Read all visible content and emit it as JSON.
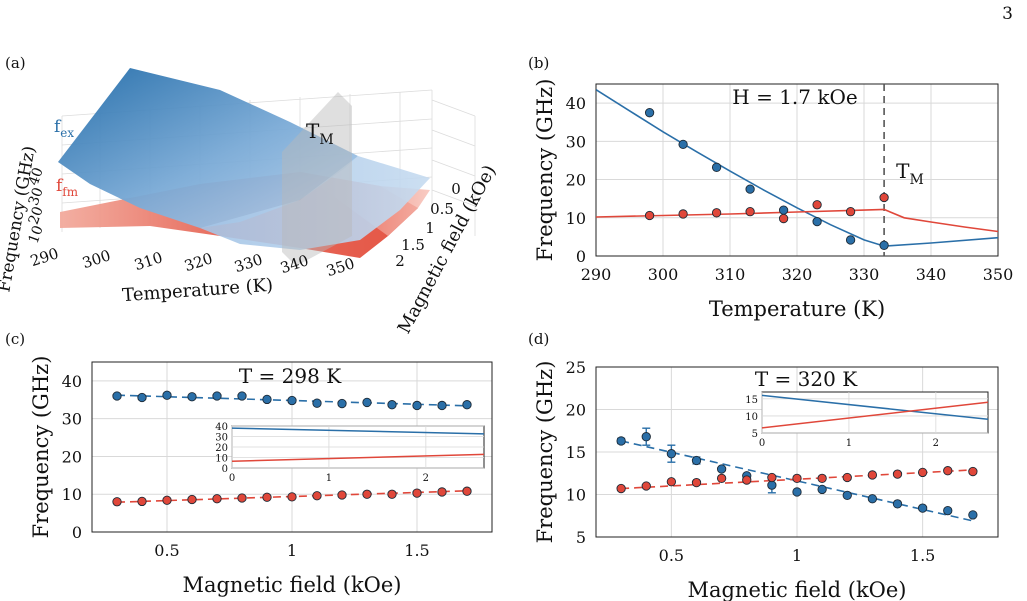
{
  "page_number": "3",
  "colors": {
    "blue": "#2a6fa8",
    "red": "#e0473a",
    "grid": "#d9d9d9",
    "dashed": "#555555"
  },
  "chart_data": [
    {
      "panel": "(a)",
      "type": "surface",
      "xlabel": "Temperature (K)",
      "ylabel": "Magnetic field (kOe)",
      "zlabel": "Frequency (GHz)",
      "x_ticks": [
        "290",
        "300",
        "310",
        "320",
        "330",
        "340",
        "350"
      ],
      "y_ticks": [
        "0",
        "0.5",
        "1",
        "1.5",
        "2"
      ],
      "z_ticks": [
        "10",
        "20",
        "30",
        "40"
      ],
      "series": [
        {
          "name": "f",
          "sub": "ex",
          "color": "#2a6fa8"
        },
        {
          "name": "f",
          "sub": "fm",
          "color": "#e0473a"
        }
      ],
      "annotation": {
        "text": "T",
        "sub": "M"
      }
    },
    {
      "panel": "(b)",
      "type": "scatter",
      "annotation_title": "H = 1.7 kOe",
      "xlabel": "Temperature (K)",
      "ylabel": "Frequency (GHz)",
      "xlim": [
        290,
        350
      ],
      "ylim": [
        0,
        45
      ],
      "x_ticks": [
        290,
        300,
        310,
        320,
        330,
        340,
        350
      ],
      "y_ticks": [
        0,
        10,
        20,
        30,
        40
      ],
      "vline": {
        "x": 333,
        "label": "T",
        "sub": "M"
      },
      "series": [
        {
          "color": "#2a6fa8",
          "points": [
            [
              298,
              37.5
            ],
            [
              303,
              29.2
            ],
            [
              308,
              23.2
            ],
            [
              313,
              17.5
            ],
            [
              318,
              12.0
            ],
            [
              323,
              9.0
            ],
            [
              328,
              4.2
            ],
            [
              333,
              2.8
            ]
          ],
          "fit": [
            [
              290,
              43.5
            ],
            [
              295,
              38.0
            ],
            [
              300,
              32.5
            ],
            [
              305,
              27.3
            ],
            [
              310,
              22.2
            ],
            [
              315,
              17.3
            ],
            [
              320,
              12.6
            ],
            [
              325,
              8.2
            ],
            [
              330,
              4.2
            ],
            [
              333,
              2.6
            ],
            [
              340,
              3.4
            ],
            [
              350,
              4.8
            ]
          ]
        },
        {
          "color": "#e0473a",
          "points": [
            [
              298,
              10.6
            ],
            [
              303,
              11.0
            ],
            [
              308,
              11.3
            ],
            [
              313,
              11.6
            ],
            [
              318,
              9.8
            ],
            [
              323,
              13.4
            ],
            [
              328,
              11.6
            ],
            [
              333,
              15.3
            ]
          ],
          "fit": [
            [
              290,
              10.2
            ],
            [
              300,
              10.6
            ],
            [
              310,
              11.0
            ],
            [
              320,
              11.5
            ],
            [
              330,
              12.0
            ],
            [
              333,
              12.2
            ],
            [
              336,
              10.0
            ],
            [
              340,
              8.9
            ],
            [
              345,
              7.6
            ],
            [
              350,
              6.4
            ]
          ]
        }
      ]
    },
    {
      "panel": "(c)",
      "type": "scatter",
      "annotation_title": "T = 298 K",
      "xlabel": "Magnetic field (kOe)",
      "ylabel": "Frequency (GHz)",
      "xlim": [
        0.2,
        1.8
      ],
      "ylim": [
        0,
        45
      ],
      "x_ticks": [
        0.5,
        1,
        1.5
      ],
      "y_ticks": [
        0,
        10,
        20,
        30,
        40
      ],
      "series": [
        {
          "color": "#2a6fa8",
          "points": [
            [
              0.3,
              36.0
            ],
            [
              0.4,
              35.6
            ],
            [
              0.5,
              36.2
            ],
            [
              0.6,
              35.8
            ],
            [
              0.7,
              36.0
            ],
            [
              0.8,
              36.0
            ],
            [
              0.9,
              35.1
            ],
            [
              1.0,
              34.8
            ],
            [
              1.1,
              34.1
            ],
            [
              1.2,
              34.0
            ],
            [
              1.3,
              34.3
            ],
            [
              1.4,
              33.7
            ],
            [
              1.5,
              33.5
            ],
            [
              1.6,
              33.5
            ],
            [
              1.7,
              33.7
            ]
          ],
          "fit": [
            [
              0.3,
              36.2
            ],
            [
              1.7,
              33.4
            ]
          ]
        },
        {
          "color": "#e0473a",
          "points": [
            [
              0.3,
              8.0
            ],
            [
              0.4,
              8.1
            ],
            [
              0.5,
              8.4
            ],
            [
              0.6,
              8.6
            ],
            [
              0.7,
              8.8
            ],
            [
              0.8,
              9.0
            ],
            [
              0.9,
              9.2
            ],
            [
              1.0,
              9.3
            ],
            [
              1.1,
              9.6
            ],
            [
              1.2,
              9.8
            ],
            [
              1.3,
              10.0
            ],
            [
              1.4,
              10.0
            ],
            [
              1.5,
              10.3
            ],
            [
              1.6,
              10.6
            ],
            [
              1.7,
              10.8
            ]
          ],
          "fit": [
            [
              0.3,
              7.9
            ],
            [
              1.7,
              10.9
            ]
          ]
        }
      ],
      "inset": {
        "xlim": [
          0,
          2.6
        ],
        "ylim": [
          0,
          40
        ],
        "x_ticks": [
          0,
          1,
          2
        ],
        "y_ticks": [
          0,
          10,
          20,
          30,
          40
        ],
        "lines": [
          {
            "color": "#2a6fa8",
            "points": [
              [
                0,
                38.0
              ],
              [
                2.6,
                32.5
              ]
            ]
          },
          {
            "color": "#e0473a",
            "points": [
              [
                0,
                6.5
              ],
              [
                2.6,
                13.0
              ]
            ]
          }
        ]
      }
    },
    {
      "panel": "(d)",
      "type": "scatter",
      "annotation_title": "T = 320 K",
      "xlabel": "Magnetic field (kOe)",
      "ylabel": "Frequency (GHz)",
      "xlim": [
        0.2,
        1.8
      ],
      "ylim": [
        5,
        25
      ],
      "x_ticks": [
        0.5,
        1,
        1.5
      ],
      "y_ticks": [
        5,
        10,
        15,
        20,
        25
      ],
      "series": [
        {
          "color": "#2a6fa8",
          "points": [
            [
              0.3,
              16.3,
              0.3
            ],
            [
              0.4,
              16.8,
              1.0
            ],
            [
              0.5,
              14.8,
              1.0
            ],
            [
              0.6,
              14.0,
              0.4
            ],
            [
              0.7,
              13.0,
              0
            ],
            [
              0.8,
              12.2,
              0
            ],
            [
              0.9,
              11.1,
              0.9
            ],
            [
              1.0,
              10.3,
              0
            ],
            [
              1.1,
              10.6,
              0
            ],
            [
              1.2,
              9.9,
              0
            ],
            [
              1.3,
              9.5,
              0
            ],
            [
              1.4,
              8.9,
              0
            ],
            [
              1.5,
              8.4,
              0
            ],
            [
              1.6,
              8.1,
              0
            ],
            [
              1.7,
              7.6,
              0
            ]
          ],
          "fit": [
            [
              0.3,
              16.3
            ],
            [
              1.7,
              6.9
            ]
          ]
        },
        {
          "color": "#e0473a",
          "points": [
            [
              0.3,
              10.7
            ],
            [
              0.4,
              11.0
            ],
            [
              0.5,
              11.5
            ],
            [
              0.6,
              11.4
            ],
            [
              0.7,
              11.9
            ],
            [
              0.8,
              11.7
            ],
            [
              0.9,
              12.0
            ],
            [
              1.0,
              11.9
            ],
            [
              1.1,
              11.9
            ],
            [
              1.2,
              12.0
            ],
            [
              1.3,
              12.3
            ],
            [
              1.4,
              12.4
            ],
            [
              1.5,
              12.6
            ],
            [
              1.6,
              12.8
            ],
            [
              1.7,
              12.7
            ]
          ],
          "fit": [
            [
              0.3,
              10.7
            ],
            [
              1.7,
              12.9
            ]
          ]
        }
      ],
      "inset": {
        "xlim": [
          0,
          2.6
        ],
        "ylim": [
          5,
          17
        ],
        "x_ticks": [
          0,
          1,
          2
        ],
        "y_ticks": [
          5,
          10,
          15
        ],
        "lines": [
          {
            "color": "#2a6fa8",
            "points": [
              [
                0,
                16.0
              ],
              [
                2.6,
                9.0
              ]
            ]
          },
          {
            "color": "#e0473a",
            "points": [
              [
                0,
                6.5
              ],
              [
                2.6,
                14.0
              ]
            ]
          }
        ]
      }
    }
  ]
}
